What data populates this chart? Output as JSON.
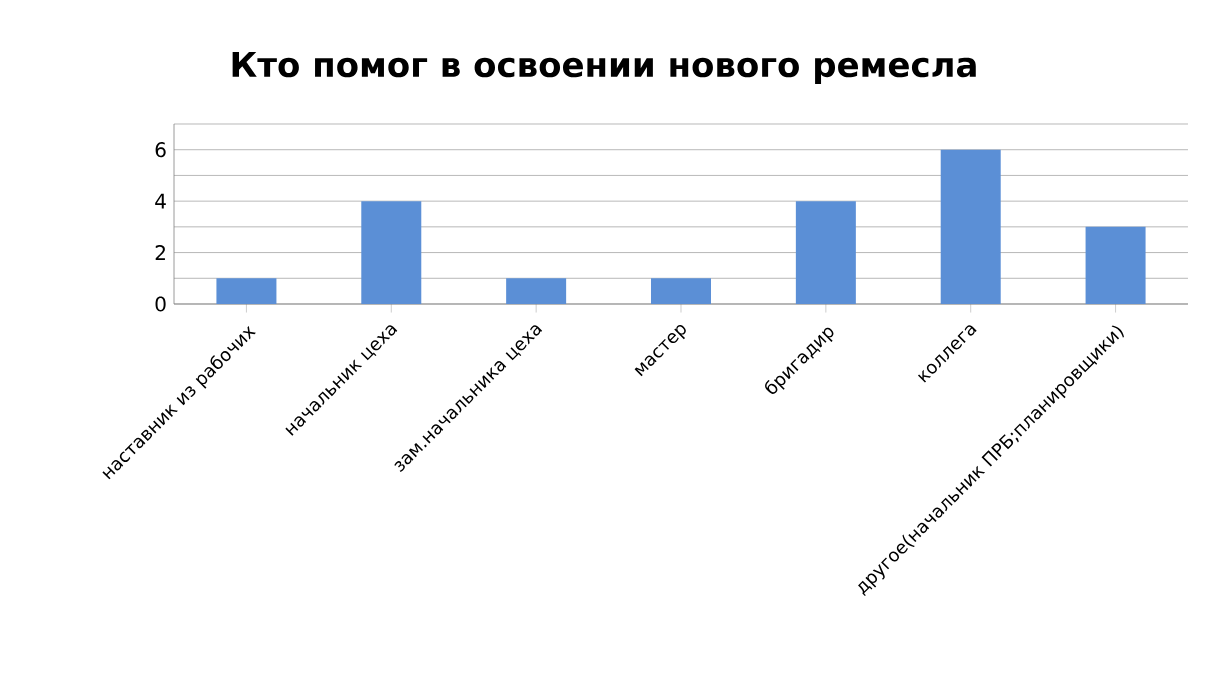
{
  "chart_data": {
    "type": "bar",
    "title": "Кто помог в освоении нового ремесла",
    "categories": [
      "наставник из рабочих",
      "начальник цеха",
      "зам.начальника цеха",
      "мастер",
      "бригадир",
      "коллега",
      "другое(начальник ПРБ;планировщики)"
    ],
    "values": [
      1,
      4,
      1,
      1,
      4,
      6,
      3
    ],
    "color": "#5b8fd6",
    "ylim": [
      0,
      7
    ],
    "yticks": [
      0,
      {
        "value": 1,
        "label": null
      },
      2,
      {
        "value": 3,
        "label": null
      },
      4,
      {
        "value": 5,
        "label": null
      },
      6,
      {
        "value": 7,
        "label": null
      }
    ],
    "grid": "y"
  }
}
